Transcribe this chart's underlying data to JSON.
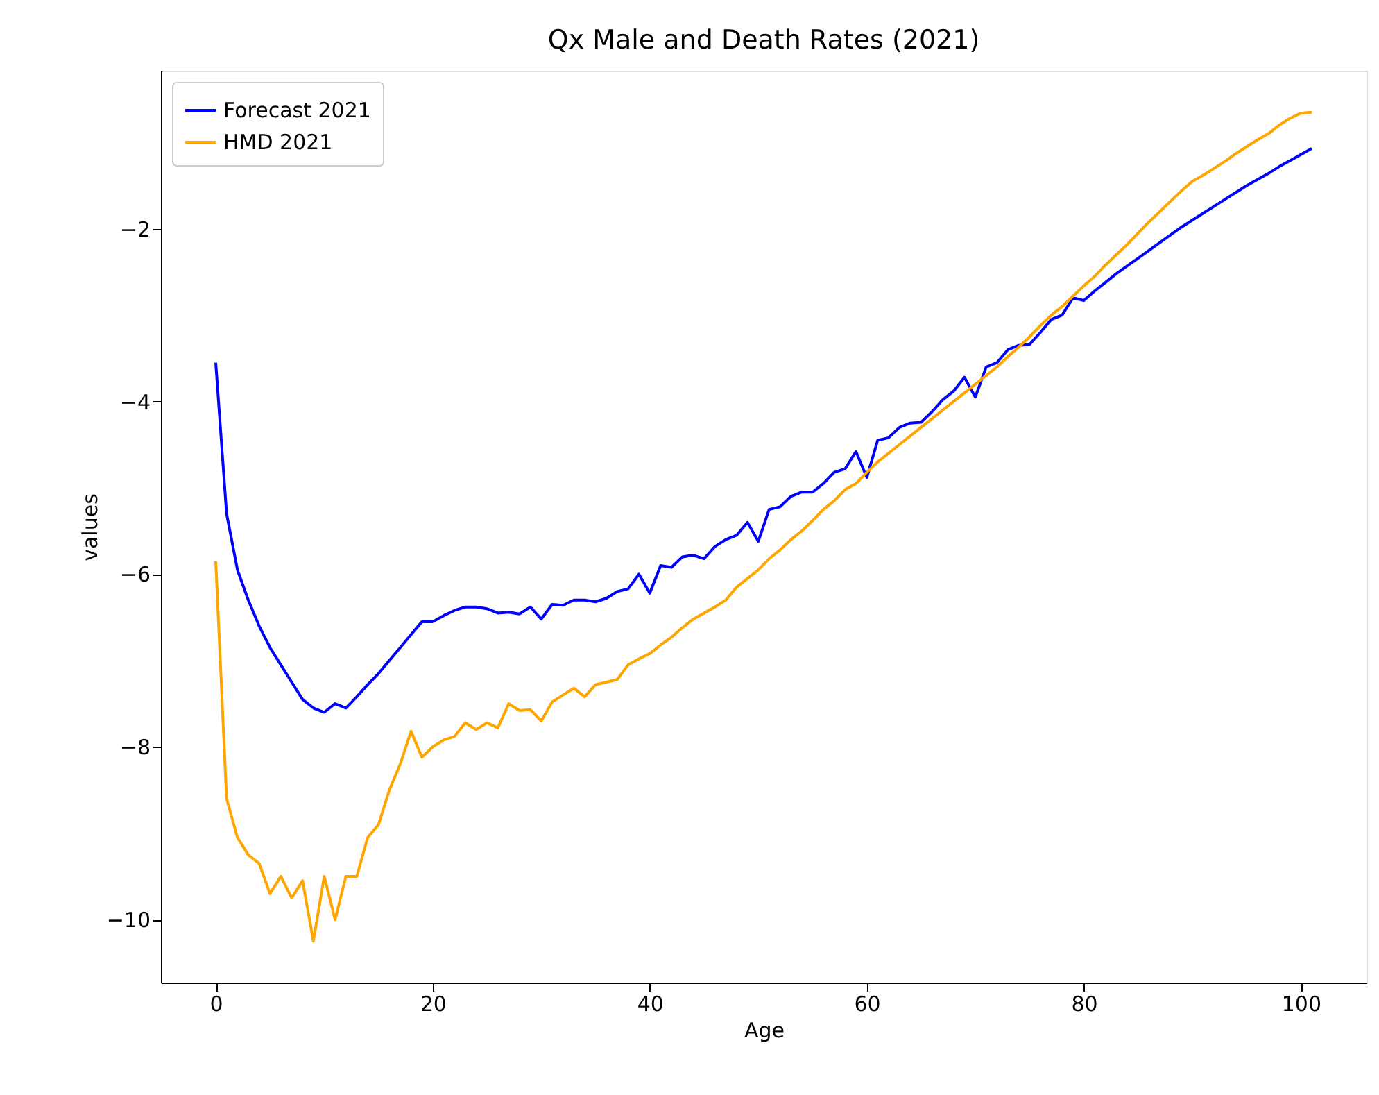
{
  "chart_data": {
    "type": "line",
    "title": "Qx Male and Death Rates (2021)",
    "xlabel": "Age",
    "ylabel": "values",
    "x": [
      0,
      1,
      2,
      3,
      4,
      5,
      6,
      7,
      8,
      9,
      10,
      11,
      12,
      13,
      14,
      15,
      16,
      17,
      18,
      19,
      20,
      21,
      22,
      23,
      24,
      25,
      26,
      27,
      28,
      29,
      30,
      31,
      32,
      33,
      34,
      35,
      36,
      37,
      38,
      39,
      40,
      41,
      42,
      43,
      44,
      45,
      46,
      47,
      48,
      49,
      50,
      51,
      52,
      53,
      54,
      55,
      56,
      57,
      58,
      59,
      60,
      61,
      62,
      63,
      64,
      65,
      66,
      67,
      68,
      69,
      70,
      71,
      72,
      73,
      74,
      75,
      76,
      77,
      78,
      79,
      80,
      81,
      82,
      83,
      84,
      85,
      86,
      87,
      88,
      89,
      90,
      91,
      92,
      93,
      94,
      95,
      96,
      97,
      98,
      99,
      100,
      101
    ],
    "series": [
      {
        "name": "Forecast 2021",
        "color": "#0000ff",
        "values": [
          -3.55,
          -5.3,
          -5.95,
          -6.3,
          -6.6,
          -6.85,
          -7.05,
          -7.25,
          -7.45,
          -7.55,
          -7.6,
          -7.5,
          -7.55,
          -7.42,
          -7.28,
          -7.15,
          -7.0,
          -6.85,
          -6.7,
          -6.55,
          -6.55,
          -6.48,
          -6.42,
          -6.38,
          -6.38,
          -6.4,
          -6.45,
          -6.44,
          -6.46,
          -6.38,
          -6.52,
          -6.35,
          -6.36,
          -6.3,
          -6.3,
          -6.32,
          -6.28,
          -6.2,
          -6.17,
          -6.0,
          -6.22,
          -5.9,
          -5.92,
          -5.8,
          -5.78,
          -5.82,
          -5.68,
          -5.6,
          -5.55,
          -5.4,
          -5.62,
          -5.25,
          -5.22,
          -5.1,
          -5.05,
          -5.05,
          -4.95,
          -4.82,
          -4.78,
          -4.58,
          -4.88,
          -4.45,
          -4.42,
          -4.3,
          -4.25,
          -4.24,
          -4.12,
          -3.98,
          -3.88,
          -3.72,
          -3.95,
          -3.6,
          -3.55,
          -3.4,
          -3.35,
          -3.34,
          -3.2,
          -3.05,
          -3.0,
          -2.8,
          -2.83,
          -2.72,
          -2.62,
          -2.52,
          -2.43,
          -2.34,
          -2.25,
          -2.16,
          -2.07,
          -1.98,
          -1.9,
          -1.82,
          -1.74,
          -1.66,
          -1.58,
          -1.5,
          -1.43,
          -1.36,
          -1.28,
          -1.21,
          -1.14,
          -1.07
        ]
      },
      {
        "name": "HMD 2021",
        "color": "#ffa500",
        "values": [
          -5.85,
          -8.6,
          -9.05,
          -9.25,
          -9.35,
          -9.7,
          -9.5,
          -9.75,
          -9.55,
          -10.25,
          -9.5,
          -10.0,
          -9.5,
          -9.5,
          -9.05,
          -8.9,
          -8.5,
          -8.2,
          -7.82,
          -8.12,
          -8.0,
          -7.92,
          -7.88,
          -7.72,
          -7.8,
          -7.72,
          -7.78,
          -7.5,
          -7.58,
          -7.57,
          -7.7,
          -7.48,
          -7.4,
          -7.32,
          -7.42,
          -7.28,
          -7.25,
          -7.22,
          -7.05,
          -6.98,
          -6.92,
          -6.82,
          -6.73,
          -6.62,
          -6.52,
          -6.45,
          -6.38,
          -6.3,
          -6.15,
          -6.05,
          -5.95,
          -5.82,
          -5.72,
          -5.6,
          -5.5,
          -5.38,
          -5.25,
          -5.15,
          -5.02,
          -4.95,
          -4.82,
          -4.7,
          -4.6,
          -4.5,
          -4.4,
          -4.3,
          -4.2,
          -4.1,
          -4.0,
          -3.9,
          -3.8,
          -3.7,
          -3.6,
          -3.48,
          -3.37,
          -3.25,
          -3.12,
          -3.0,
          -2.9,
          -2.78,
          -2.66,
          -2.55,
          -2.42,
          -2.3,
          -2.18,
          -2.05,
          -1.92,
          -1.8,
          -1.68,
          -1.56,
          -1.45,
          -1.38,
          -1.3,
          -1.22,
          -1.13,
          -1.05,
          -0.97,
          -0.9,
          -0.8,
          -0.72,
          -0.66,
          -0.65
        ]
      }
    ],
    "xlim": [
      -5.05,
      106.05
    ],
    "xticks": [
      0,
      20,
      40,
      60,
      80,
      100
    ],
    "ylim": [
      -10.73,
      -0.17
    ],
    "yticks": [
      -10,
      -8,
      -6,
      -4,
      -2
    ],
    "grid": false,
    "legend": "top left",
    "line_style": "solid",
    "marker": "none"
  }
}
